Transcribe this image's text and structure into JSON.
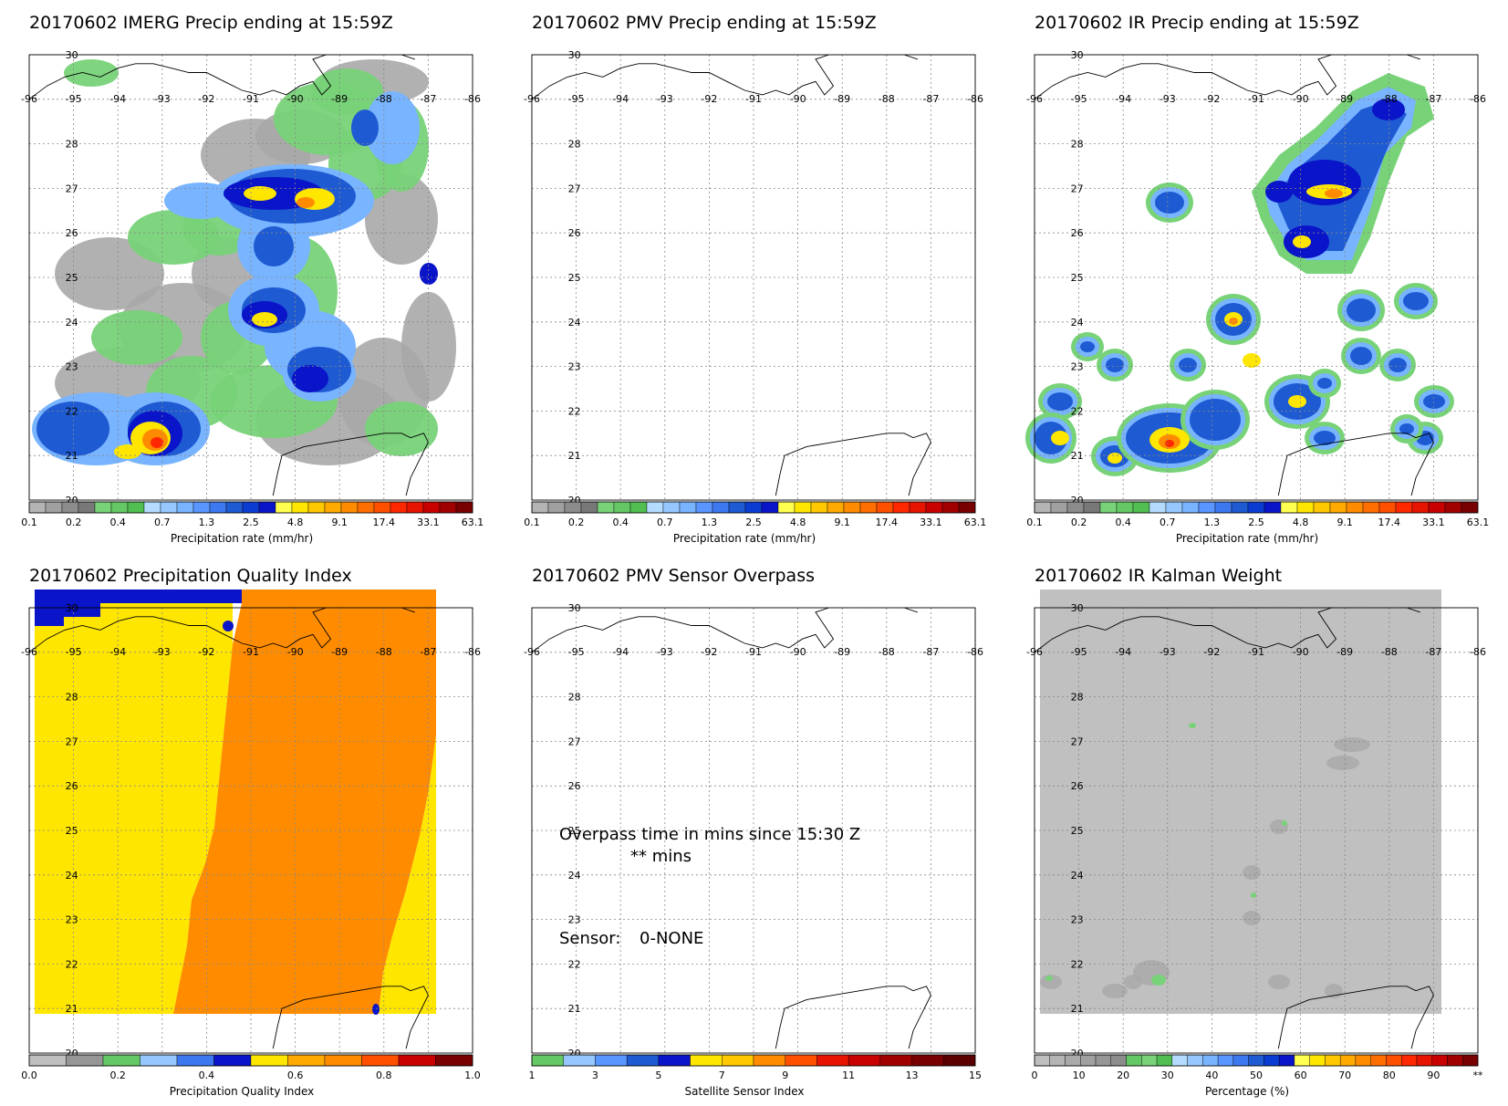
{
  "panels": [
    {
      "id": "imerg",
      "title": "20170602 IMERG Precip ending at 15:59Z",
      "kind": "precip",
      "colorbar": {
        "label": "Precipitation rate (mm/hr)",
        "tick_labels": [
          "0.1",
          "0.2",
          "0.4",
          "0.7",
          "1.3",
          "2.5",
          "4.8",
          "9.1",
          "17.4",
          "33.1",
          "63.1"
        ]
      }
    },
    {
      "id": "pmv",
      "title": "20170602 PMV Precip ending at 15:59Z",
      "kind": "empty",
      "colorbar": {
        "label": "Precipitation rate (mm/hr)",
        "tick_labels": [
          "0.1",
          "0.2",
          "0.4",
          "0.7",
          "1.3",
          "2.5",
          "4.8",
          "9.1",
          "17.4",
          "33.1",
          "63.1"
        ]
      }
    },
    {
      "id": "ir",
      "title": "20170602 IR Precip ending at 15:59Z",
      "kind": "ir",
      "colorbar": {
        "label": "Precipitation rate (mm/hr)",
        "tick_labels": [
          "0.1",
          "0.2",
          "0.4",
          "0.7",
          "1.3",
          "2.5",
          "4.8",
          "9.1",
          "17.4",
          "33.1",
          "63.1"
        ]
      }
    },
    {
      "id": "pqi",
      "title": "20170602 Precipitation Quality Index",
      "kind": "pqi",
      "colorbar": {
        "label": "Precipitation Quality Index",
        "tick_labels": [
          "0.0",
          "0.2",
          "0.4",
          "0.6",
          "0.8",
          "1.0"
        ]
      }
    },
    {
      "id": "overpass",
      "title": "20170602 PMV Sensor Overpass",
      "kind": "overpass",
      "overlay": {
        "line1": "Overpass time in mins since 15:30 Z",
        "line2": "** mins",
        "sensor_label": "Sensor:",
        "sensor_value": "0-NONE"
      },
      "colorbar": {
        "label": "Satellite Sensor Index",
        "tick_labels": [
          "1",
          "3",
          "5",
          "7",
          "9",
          "11",
          "13",
          "15"
        ]
      }
    },
    {
      "id": "kalman",
      "title": "20170602 IR Kalman Weight",
      "kind": "kalman",
      "colorbar": {
        "label": "Percentage (%)",
        "tick_labels": [
          "0",
          "10",
          "20",
          "30",
          "40",
          "50",
          "60",
          "70",
          "80",
          "90",
          "**"
        ]
      }
    }
  ],
  "map": {
    "lon_labels": [
      "-96",
      "-95",
      "-94",
      "-93",
      "-92",
      "-91",
      "-90",
      "-89",
      "-88",
      "-87",
      "-86"
    ],
    "lat_labels": [
      "30",
      "28",
      "27",
      "26",
      "25",
      "24",
      "23",
      "22",
      "21",
      "20"
    ]
  },
  "colors": {
    "precip_scale": [
      "#b4b4b4",
      "#a0a0a0",
      "#8c8c8c",
      "#787878",
      "#78d278",
      "#64c864",
      "#50be50",
      "#b4dcff",
      "#96c8ff",
      "#78b4ff",
      "#5a96ff",
      "#3c78f0",
      "#1e5ad2",
      "#0a3cd2",
      "#0a14c8",
      "#ffff50",
      "#ffe600",
      "#ffc800",
      "#ffaa00",
      "#ff8c00",
      "#ff6e00",
      "#ff5000",
      "#ff2800",
      "#e61400",
      "#c80000",
      "#a00000",
      "#780000"
    ],
    "pqi_scale": [
      "#bebebe",
      "#969696",
      "#64c864",
      "#96c8ff",
      "#3c78f0",
      "#0a14c8",
      "#ffe600",
      "#ffaa00",
      "#ff8c00",
      "#ff5000",
      "#c80000",
      "#780000"
    ],
    "sensor_scale": [
      "#64c864",
      "#96c8ff",
      "#5a96ff",
      "#1e5ad2",
      "#0a14c8",
      "#ffe600",
      "#ffc800",
      "#ff8c00",
      "#ff5000",
      "#e61400",
      "#c80000",
      "#a00000",
      "#780000",
      "#5a0000"
    ],
    "pct_scale": [
      "#bebebe",
      "#b4b4b4",
      "#aaaaaa",
      "#a0a0a0",
      "#969696",
      "#8c8c8c",
      "#64c864",
      "#78d278",
      "#50be50",
      "#b4dcff",
      "#96c8ff",
      "#78b4ff",
      "#5a96ff",
      "#3c78f0",
      "#1e5ad2",
      "#0a3cd2",
      "#0a14c8",
      "#ffff50",
      "#ffe600",
      "#ffc800",
      "#ffaa00",
      "#ff8c00",
      "#ff6e00",
      "#ff5000",
      "#ff2800",
      "#e61400",
      "#c80000",
      "#a00000",
      "#780000"
    ]
  }
}
